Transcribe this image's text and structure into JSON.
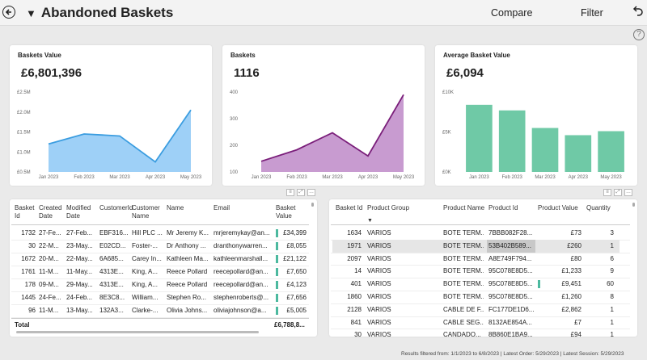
{
  "header": {
    "title": "Abandoned Baskets",
    "compare_label": "Compare",
    "filter_label": "Filter"
  },
  "kpis": {
    "value": {
      "title": "Baskets Value",
      "value": "£6,801,396"
    },
    "count": {
      "title": "Baskets",
      "value": "1116"
    },
    "avg": {
      "title": "Average Basket Value",
      "value": "£6,094"
    }
  },
  "chart_data": [
    {
      "type": "area",
      "categories": [
        "Jan 2023",
        "Feb 2023",
        "Mar 2023",
        "Apr 2023",
        "May 2023"
      ],
      "values": [
        1.2,
        1.45,
        1.4,
        0.75,
        2.05
      ],
      "y_ticks": [
        "£2.5M",
        "£2.0M",
        "£1.5M",
        "£1.0M",
        "£0.5M"
      ],
      "ylim": [
        0.5,
        2.5
      ],
      "color": "#3b9de0"
    },
    {
      "type": "area",
      "categories": [
        "Jan 2023",
        "Feb 2023",
        "Mar 2023",
        "Apr 2023",
        "May 2023"
      ],
      "values": [
        140,
        183,
        247,
        160,
        390
      ],
      "y_ticks": [
        "400",
        "300",
        "200",
        "100"
      ],
      "ylim": [
        100,
        400
      ],
      "color": "#7a1e7a"
    },
    {
      "type": "bar",
      "categories": [
        "Jan 2023",
        "Feb 2023",
        "Mar 2023",
        "Apr 2023",
        "May 2023"
      ],
      "values": [
        8400,
        7700,
        5500,
        4600,
        5100
      ],
      "y_ticks": [
        "£10K",
        "£5K",
        "£0K"
      ],
      "ylim": [
        0,
        10000
      ],
      "color": "#6fc9a6"
    }
  ],
  "left_table": {
    "headers": [
      "Basket Id",
      "Created Date",
      "Modified Date",
      "CustomerId",
      "Customer Name",
      "Name",
      "Email",
      "Basket Value"
    ],
    "rows": [
      [
        "1732",
        "27-Fe...",
        "27-Feb...",
        "EBF316...",
        "Hill PLC ...",
        "Mr Jeremy K...",
        "mrjeremykay@an...",
        "£34,399"
      ],
      [
        "30",
        "22-M...",
        "23-May...",
        "E02CD...",
        "Foster-...",
        "Dr Anthony ...",
        "dranthonywarren...",
        "£8,055"
      ],
      [
        "1672",
        "20-M...",
        "22-May...",
        "6A685...",
        "Carey In...",
        "Kathleen Ma...",
        "kathleenmarshall...",
        "£21,122"
      ],
      [
        "1761",
        "11-M...",
        "11-May...",
        "4313E...",
        "King, A...",
        "Reece Pollard",
        "reecepollard@an...",
        "£7,650"
      ],
      [
        "178",
        "09-M...",
        "29-May...",
        "4313E...",
        "King, A...",
        "Reece Pollard",
        "reecepollard@an...",
        "£4,123"
      ],
      [
        "1445",
        "24-Fe...",
        "24-Feb...",
        "8E3C8...",
        "William...",
        "Stephen Ro...",
        "stephenroberts@...",
        "£7,656"
      ],
      [
        "96",
        "11-M...",
        "13-May...",
        "132A3...",
        "Clarke-...",
        "Olivia Johns...",
        "oliviajohnson@a...",
        "£5,005"
      ]
    ],
    "total_label": "Total",
    "total_value": "£6,788,8..."
  },
  "right_table": {
    "headers": [
      "Basket Id",
      "Product Group",
      "Product Name",
      "Product Id",
      "Product Value",
      "Quantity"
    ],
    "rows": [
      [
        "1634",
        "VARIOS",
        "BOTE TERM...",
        "7BBB082F28...",
        "£73",
        "3"
      ],
      [
        "1971",
        "VARIOS",
        "BOTE TERM...",
        "53B402B589...",
        "£260",
        "1"
      ],
      [
        "2097",
        "VARIOS",
        "BOTE TERM...",
        "A8E749F794...",
        "£80",
        "6"
      ],
      [
        "14",
        "VARIOS",
        "BOTE TERM...",
        "95C078E8D5...",
        "£1,233",
        "9"
      ],
      [
        "401",
        "VARIOS",
        "BOTE TERM...",
        "95C078E8D5...",
        "£9,451",
        "60"
      ],
      [
        "1860",
        "VARIOS",
        "BOTE TERM...",
        "95C078E8D5...",
        "£1,260",
        "8"
      ],
      [
        "2128",
        "VARIOS",
        "CABLE DE F...",
        "FC177DE1D6...",
        "£2,862",
        "1"
      ],
      [
        "841",
        "VARIOS",
        "CABLE SEG...",
        "8132AE854A...",
        "£7",
        "1"
      ],
      [
        "30",
        "VARIOS",
        "CANDADO...",
        "8B860E1BA9...",
        "£94",
        "1"
      ]
    ]
  },
  "footer": {
    "text": "Results filtered from: 1/1/2023 to 6/8/2023  |  Latest Order: 5/29/2023  |  Latest Session: 5/29/2023"
  }
}
